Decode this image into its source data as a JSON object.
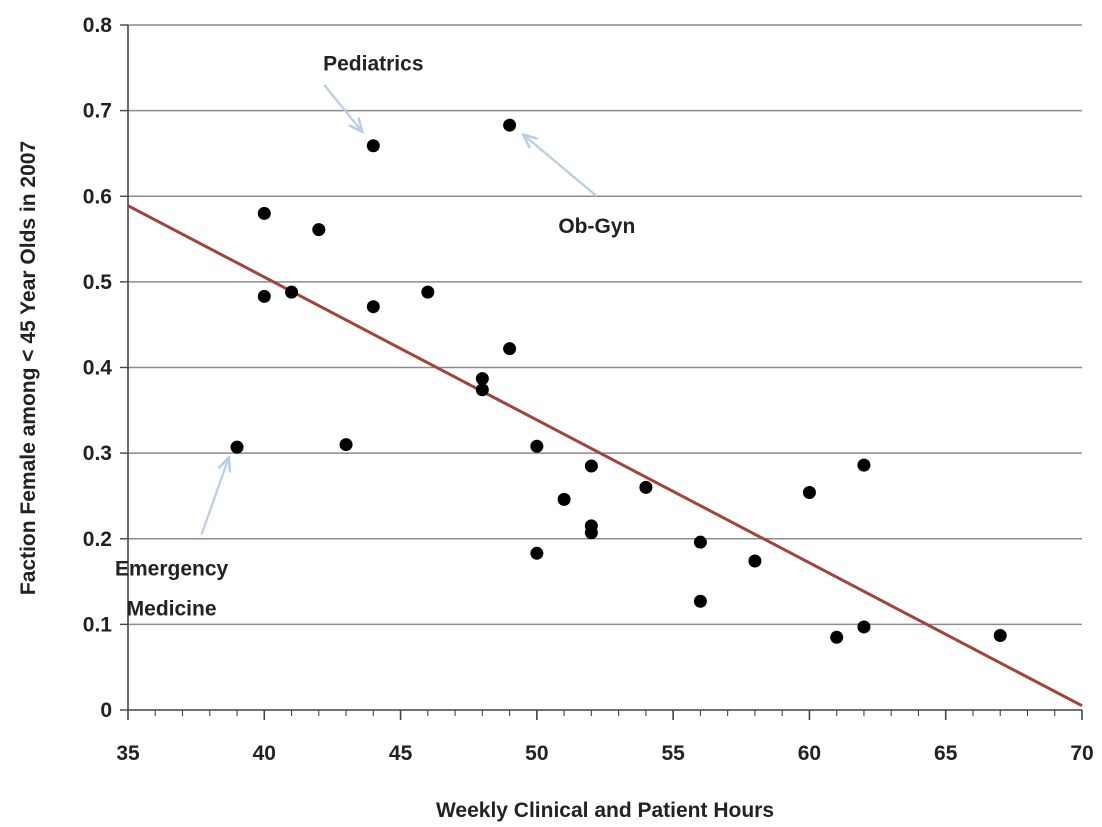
{
  "chart_data": {
    "type": "scatter",
    "title": "",
    "xlabel": "Weekly Clinical and Patient Hours",
    "ylabel": "Faction Female among < 45 Year Olds in 2007",
    "xlim": [
      35,
      70
    ],
    "ylim": [
      0,
      0.8
    ],
    "x_ticks": [
      "35",
      "40",
      "45",
      "50",
      "55",
      "60",
      "65",
      "70"
    ],
    "y_ticks": [
      "0",
      "0.1",
      "0.2",
      "0.3",
      "0.4",
      "0.5",
      "0.6",
      "0.7",
      "0.8"
    ],
    "grid": "horizontal",
    "legend": "none",
    "points": [
      {
        "x": 39,
        "y": 0.307
      },
      {
        "x": 40,
        "y": 0.58
      },
      {
        "x": 40,
        "y": 0.483
      },
      {
        "x": 41,
        "y": 0.488
      },
      {
        "x": 42,
        "y": 0.561
      },
      {
        "x": 43,
        "y": 0.31
      },
      {
        "x": 44,
        "y": 0.659
      },
      {
        "x": 44,
        "y": 0.471
      },
      {
        "x": 46,
        "y": 0.488
      },
      {
        "x": 48,
        "y": 0.387
      },
      {
        "x": 48,
        "y": 0.374
      },
      {
        "x": 49,
        "y": 0.683
      },
      {
        "x": 49,
        "y": 0.422
      },
      {
        "x": 50,
        "y": 0.308
      },
      {
        "x": 50,
        "y": 0.183
      },
      {
        "x": 51,
        "y": 0.246
      },
      {
        "x": 52,
        "y": 0.285
      },
      {
        "x": 52,
        "y": 0.215
      },
      {
        "x": 52,
        "y": 0.207
      },
      {
        "x": 54,
        "y": 0.26
      },
      {
        "x": 56,
        "y": 0.196
      },
      {
        "x": 56,
        "y": 0.127
      },
      {
        "x": 58,
        "y": 0.174
      },
      {
        "x": 60,
        "y": 0.254
      },
      {
        "x": 61,
        "y": 0.085
      },
      {
        "x": 62,
        "y": 0.286
      },
      {
        "x": 62,
        "y": 0.097
      },
      {
        "x": 67,
        "y": 0.087
      }
    ],
    "trendline": {
      "x": [
        35,
        70
      ],
      "y": [
        0.589,
        0.005
      ]
    },
    "annotations": [
      {
        "id": "pediatrics",
        "lines": [
          "Pediatrics"
        ],
        "label_x": 44.0,
        "label_y": 0.755,
        "arrow_from": [
          42.2,
          0.73
        ],
        "arrow_to": [
          43.6,
          0.675
        ]
      },
      {
        "id": "ob-gyn",
        "lines": [
          "Ob-Gyn"
        ],
        "label_x": 52.2,
        "label_y": 0.565,
        "arrow_from": [
          52.2,
          0.6
        ],
        "arrow_to": [
          49.5,
          0.672
        ]
      },
      {
        "id": "emergency-medicine",
        "lines": [
          "Emergency",
          "Medicine"
        ],
        "label_x": 36.6,
        "label_y": 0.165,
        "arrow_from": [
          37.7,
          0.205
        ],
        "arrow_to": [
          38.7,
          0.295
        ]
      }
    ],
    "colors": {
      "points": "#000000",
      "trendline": "#a0443c",
      "grid": "#8c8c8c",
      "axis": "#444444",
      "arrow": "#b9cde5"
    }
  }
}
